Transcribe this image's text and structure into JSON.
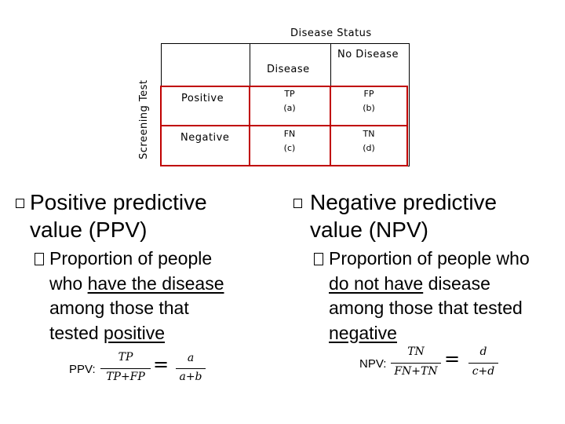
{
  "table": {
    "column_header": "Disease Status",
    "row_header": "Screening Test",
    "col_disease": "Disease",
    "col_no_disease": "No Disease",
    "row_positive": "Positive",
    "row_negative": "Negative",
    "tp": "TP",
    "tp_sub": "(a)",
    "fp": "FP",
    "fp_sub": "(b)",
    "fn": "FN",
    "fn_sub": "(c)",
    "tn": "TN",
    "tn_sub": "(d)"
  },
  "ppv": {
    "title_line1": "Positive predictive",
    "title_line2": "value (PPV)",
    "desc_prefix": "Proportion of people",
    "desc_who": "who ",
    "desc_u1": "have the disease",
    "desc_line3": "among those that",
    "desc_tested": "tested ",
    "desc_u2": "positive",
    "formula_label": "PPV:",
    "num1": "TP",
    "den1": "TP+FP",
    "num2": "a",
    "den2": "a+b",
    "eq": "="
  },
  "npv": {
    "title_line1": "Negative predictive",
    "title_line2": "value (NPV)",
    "desc_line1": "Proportion of people who",
    "desc_u1": "do not have",
    "desc_after_u1": " disease",
    "desc_line3": "among those that tested",
    "desc_u2": "negative",
    "formula_label": "NPV:",
    "num1": "TN",
    "den1": "FN+TN",
    "num2": "d",
    "den2": "c+d",
    "eq": "="
  },
  "colors": {
    "cell_border": "#c00000",
    "text": "#000000"
  }
}
